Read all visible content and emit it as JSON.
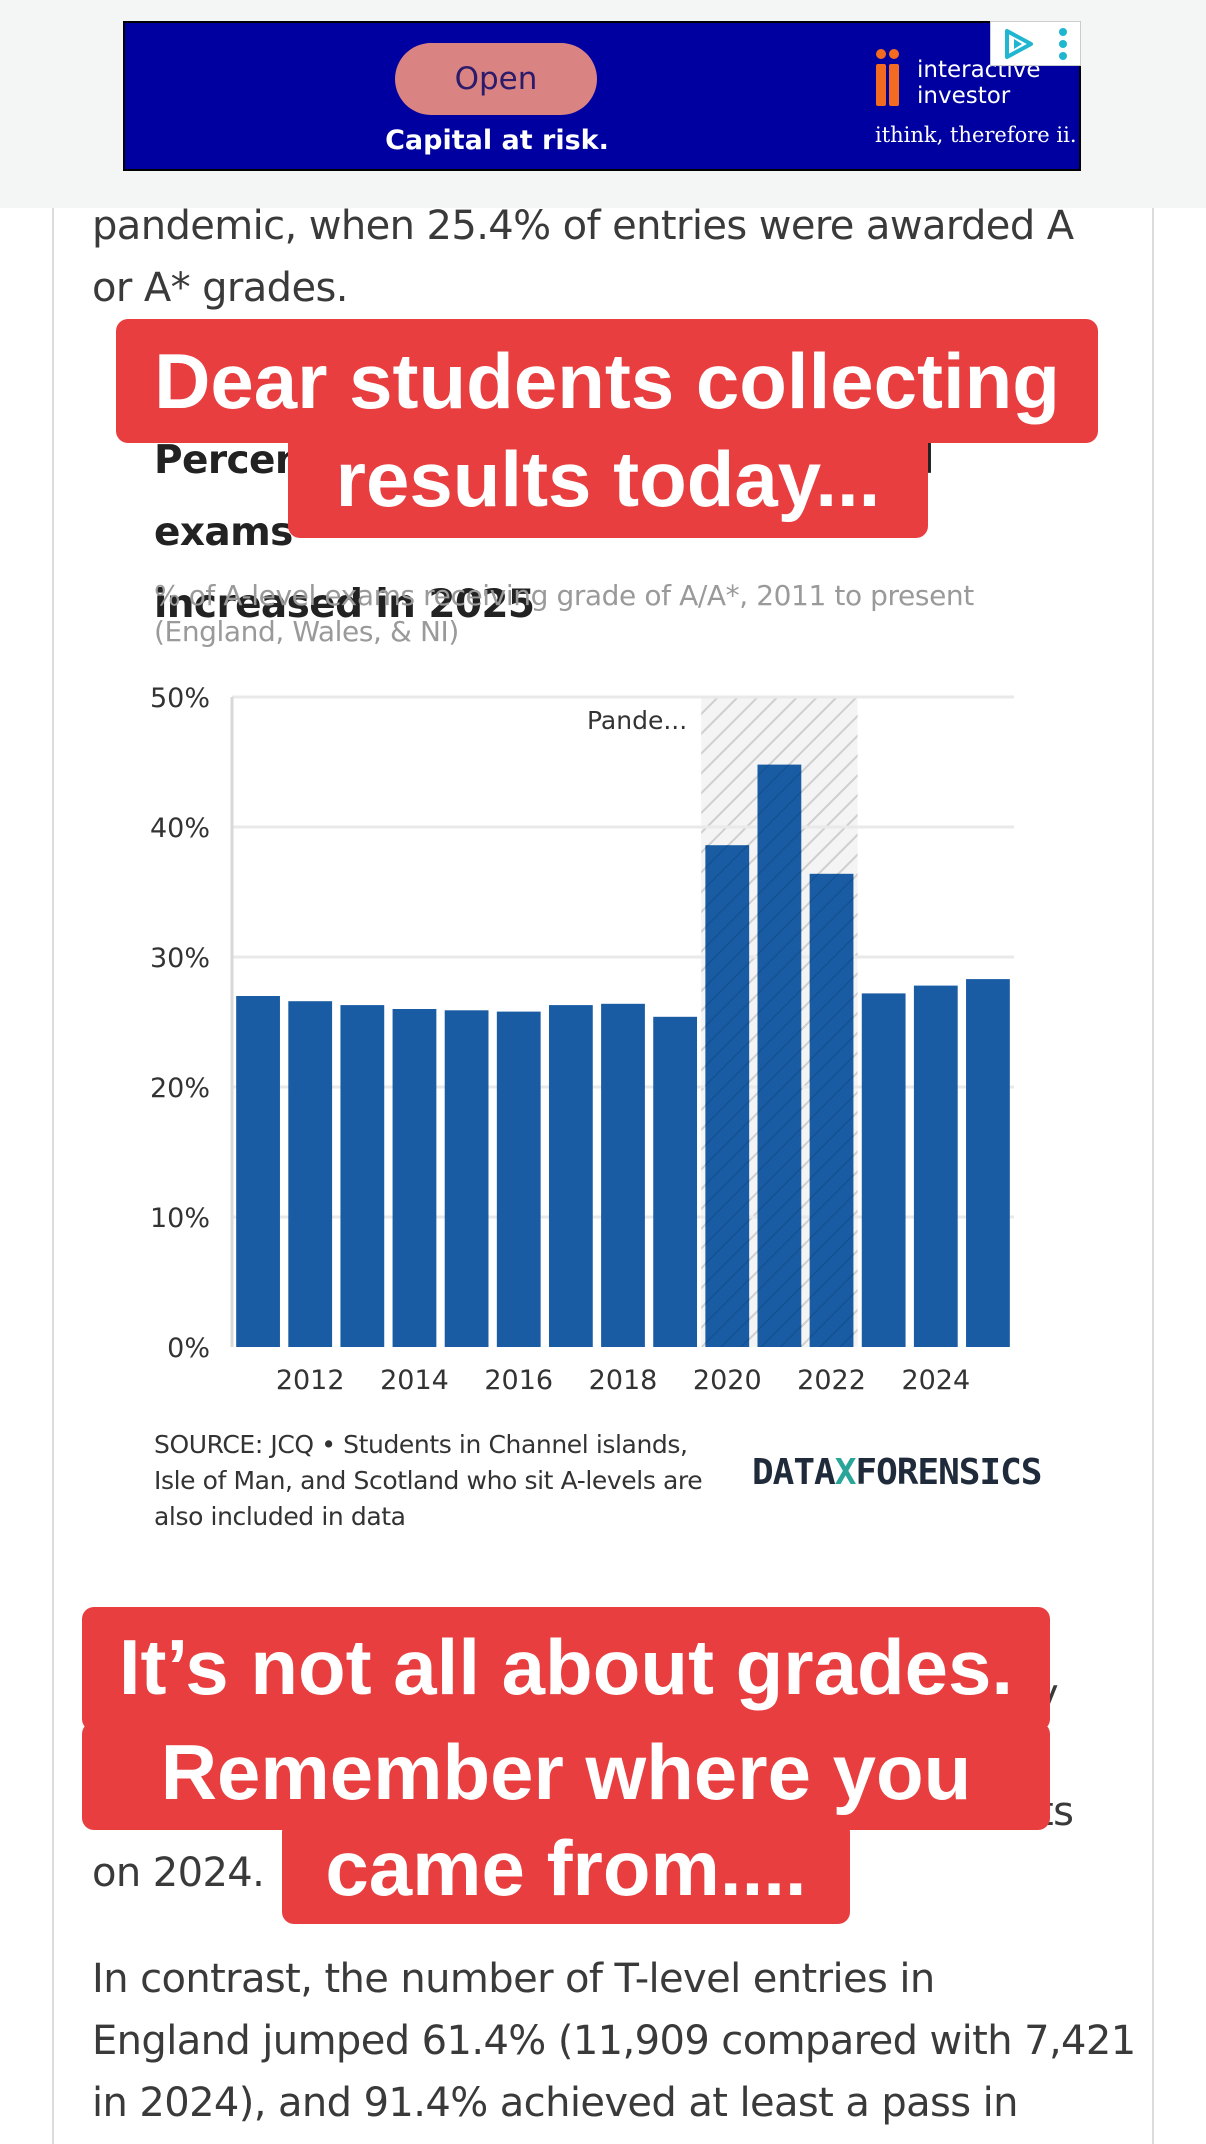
{
  "ad": {
    "open_label": "Open",
    "risk_text": "Capital at risk.",
    "brand_line1": "interactive",
    "brand_line2": "investor",
    "tagline": "ithink, therefore ii.",
    "choices_icon": "adchoices-play-icon",
    "menu_icon": "kebab-menu-icon"
  },
  "article": {
    "para_top_line1": "pandemic, when 25.4% of entries were awarded A",
    "para_top_line2": "or A* grades.",
    "chart_title_line1": "Percentage of A/A* grades in A-level exams",
    "chart_title_line2": "increased in 2025",
    "chart_subtitle_line1": "% of A-level exams receiving grade of A/A*, 2011 to present",
    "chart_subtitle_line2": "(England, Wales, & NI)",
    "source_line1": "SOURCE: JCQ • Students in Channel islands,",
    "source_line2": "Isle of Man, and Scotland who sit A-levels are",
    "source_line3": "also included in data",
    "brand_left": "DATA",
    "brand_x": "X",
    "brand_right": "FORENSICS",
    "para_mid_fragment1": "y",
    "para_mid_fragment2": "ts",
    "para_mid_line": "on 2024.",
    "para_bottom_line1": "In contrast, the number of T-level entries in",
    "para_bottom_line2": "England jumped 61.4% (11,909 compared with 7,421",
    "para_bottom_line3": "in 2024), and 91.4% achieved at least a pass in"
  },
  "captions": {
    "top_line1": "Dear students collecting",
    "top_line2": "results today...",
    "bottom_line1": "It’s not all about grades.",
    "bottom_line2": "Remember where you",
    "bottom_line3": "came from...."
  },
  "colors": {
    "bar": "#1a5ca3",
    "caption_bg": "#e83e40",
    "ad_bg": "#0000a0",
    "ad_button": "#d98383",
    "pandemic_hatch": "#cfcfcf"
  },
  "chart_data": {
    "type": "bar",
    "x": [
      2011,
      2012,
      2013,
      2014,
      2015,
      2016,
      2017,
      2018,
      2019,
      2020,
      2021,
      2022,
      2023,
      2024,
      2025
    ],
    "values": [
      27.0,
      26.6,
      26.3,
      26.0,
      25.9,
      25.8,
      26.3,
      26.4,
      25.4,
      38.6,
      44.8,
      36.4,
      27.2,
      27.8,
      28.3
    ],
    "xticks": [
      "2012",
      "2014",
      "2016",
      "2018",
      "2020",
      "2022",
      "2024"
    ],
    "yticks": [
      "0%",
      "10%",
      "20%",
      "30%",
      "40%",
      "50%"
    ],
    "ylim": [
      0,
      50
    ],
    "highlight": {
      "label": "Pande...",
      "from": 2020,
      "to": 2022
    },
    "grid": true
  }
}
